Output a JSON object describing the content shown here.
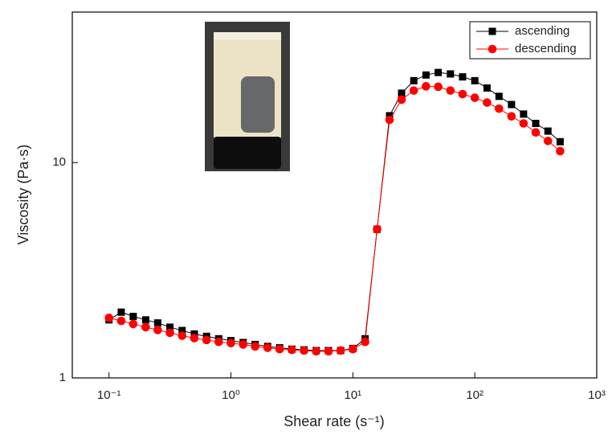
{
  "chart_data": {
    "type": "line",
    "x_label": "Shear rate (s⁻¹)",
    "y_label": "Viscosity (Pa·s)",
    "log_x": true,
    "log_y": true,
    "xlim": [
      0.05,
      1000
    ],
    "ylim": [
      1,
      50
    ],
    "xticks": [
      {
        "value": 0.1,
        "label": "10⁻¹"
      },
      {
        "value": 1,
        "label": "10⁰"
      },
      {
        "value": 10,
        "label": "10¹"
      },
      {
        "value": 100,
        "label": "10²"
      },
      {
        "value": 1000,
        "label": "10³"
      }
    ],
    "yticks": [
      1,
      10
    ],
    "legend": "top-right",
    "x": [
      0.1,
      0.126,
      0.158,
      0.2,
      0.251,
      0.316,
      0.398,
      0.501,
      0.631,
      0.794,
      1,
      1.26,
      1.58,
      2,
      2.51,
      3.16,
      3.98,
      5.01,
      6.31,
      7.94,
      10,
      12.6,
      15.8,
      20,
      25.1,
      31.6,
      39.8,
      50.1,
      63.1,
      79.4,
      100,
      126,
      158,
      200,
      251,
      316,
      398,
      501
    ],
    "series": [
      {
        "name": "ascending",
        "color": "#000000",
        "marker": "square",
        "values": [
          1.86,
          2.02,
          1.93,
          1.86,
          1.8,
          1.72,
          1.66,
          1.6,
          1.56,
          1.52,
          1.49,
          1.46,
          1.43,
          1.4,
          1.38,
          1.36,
          1.35,
          1.34,
          1.34,
          1.34,
          1.37,
          1.52,
          4.9,
          16.5,
          21,
          24,
          25.5,
          26.2,
          25.8,
          25,
          24,
          22.2,
          20.3,
          18.6,
          16.8,
          15.2,
          14,
          12.5
        ]
      },
      {
        "name": "descending",
        "color": "#ff0000",
        "marker": "circle",
        "values": [
          1.9,
          1.84,
          1.78,
          1.72,
          1.67,
          1.62,
          1.57,
          1.53,
          1.5,
          1.47,
          1.45,
          1.43,
          1.4,
          1.38,
          1.36,
          1.35,
          1.34,
          1.33,
          1.33,
          1.34,
          1.36,
          1.47,
          4.9,
          15.8,
          19.6,
          21.6,
          22.6,
          22.5,
          21.6,
          20.8,
          20,
          19,
          17.8,
          16.4,
          15.2,
          13.8,
          12.6,
          11.3
        ]
      }
    ]
  }
}
